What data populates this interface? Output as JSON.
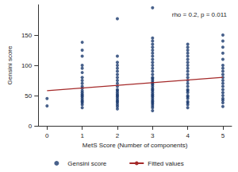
{
  "chart_data": {
    "type": "scatter",
    "x_label": "MetS Score (Number of components)",
    "y_label": "Gensini score",
    "annotation": "rho = 0.2, p = 0.011",
    "xlim": [
      -0.25,
      5.25
    ],
    "xticks": [
      0,
      1,
      2,
      3,
      4,
      5
    ],
    "ylim": [
      0,
      200
    ],
    "yticks": [
      0,
      50,
      100,
      150
    ],
    "grid": false,
    "legend": "bottom",
    "series": [
      {
        "name": "Gensini score",
        "type": "scatter",
        "color": "#1a3a6e",
        "marker": "circle",
        "x": [
          0,
          0,
          1,
          1,
          1,
          1,
          1,
          1,
          1,
          1,
          1,
          1,
          1,
          1,
          1,
          1,
          1,
          1,
          1,
          1,
          1,
          1,
          1,
          1,
          2,
          2,
          2,
          2,
          2,
          2,
          2,
          2,
          2,
          2,
          2,
          2,
          2,
          2,
          2,
          2,
          2,
          2,
          2,
          2,
          2,
          2,
          2,
          2,
          3,
          3,
          3,
          3,
          3,
          3,
          3,
          3,
          3,
          3,
          3,
          3,
          3,
          3,
          3,
          3,
          3,
          3,
          3,
          3,
          3,
          3,
          3,
          3,
          3,
          3,
          3,
          3,
          3,
          3,
          3,
          3,
          3,
          3,
          3,
          3,
          4,
          4,
          4,
          4,
          4,
          4,
          4,
          4,
          4,
          4,
          4,
          4,
          4,
          4,
          4,
          4,
          4,
          4,
          4,
          4,
          4,
          4,
          4,
          4,
          4,
          5,
          5,
          5,
          5,
          5,
          5,
          5,
          5,
          5,
          5,
          5,
          5,
          5,
          5,
          5,
          5,
          5,
          5,
          5,
          5
        ],
        "values": [
          33,
          45,
          30,
          35,
          38,
          40,
          42,
          45,
          48,
          50,
          52,
          55,
          58,
          62,
          65,
          70,
          75,
          80,
          88,
          95,
          100,
          115,
          125,
          138,
          28,
          32,
          35,
          38,
          40,
          42,
          45,
          48,
          50,
          52,
          55,
          58,
          60,
          65,
          70,
          75,
          80,
          85,
          90,
          95,
          100,
          105,
          115,
          177,
          25,
          30,
          33,
          36,
          38,
          40,
          42,
          45,
          48,
          50,
          52,
          55,
          58,
          60,
          62,
          65,
          68,
          70,
          72,
          75,
          78,
          80,
          85,
          90,
          95,
          100,
          105,
          110,
          115,
          120,
          125,
          130,
          135,
          140,
          145,
          195,
          30,
          35,
          38,
          40,
          45,
          48,
          50,
          55,
          58,
          60,
          65,
          70,
          75,
          80,
          85,
          90,
          95,
          100,
          105,
          110,
          115,
          120,
          125,
          130,
          135,
          32,
          38,
          42,
          45,
          50,
          55,
          60,
          65,
          70,
          75,
          80,
          85,
          90,
          95,
          100,
          110,
          120,
          130,
          140,
          150
        ]
      },
      {
        "name": "Fitted values",
        "type": "line",
        "color": "#a52a2a",
        "line_style": "solid",
        "x": [
          0,
          5
        ],
        "values": [
          58,
          80
        ]
      }
    ]
  }
}
